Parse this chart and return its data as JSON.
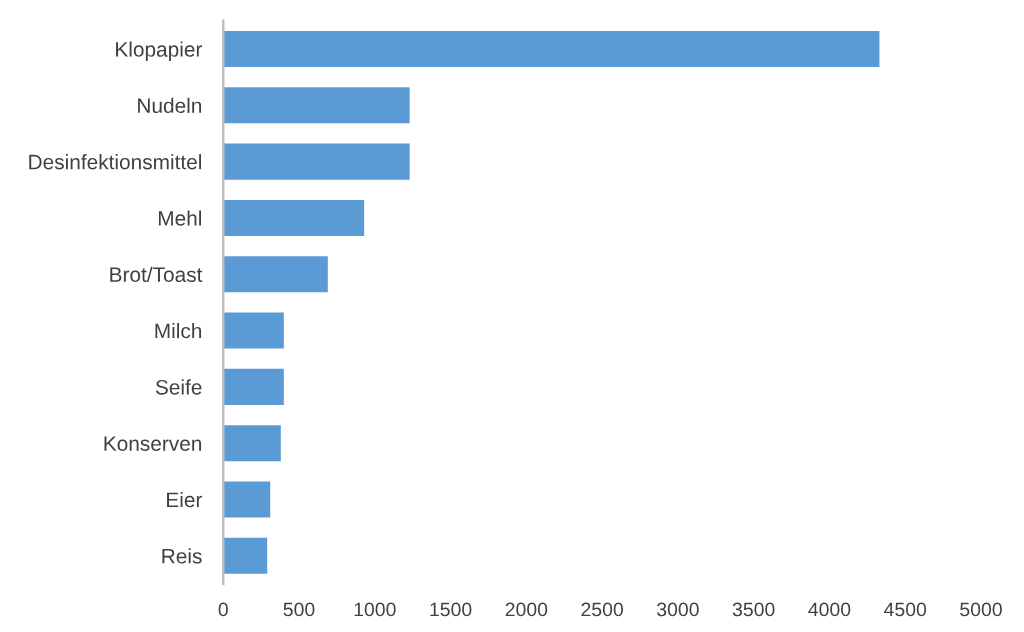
{
  "chart_data": {
    "type": "bar",
    "orientation": "horizontal",
    "categories": [
      "Klopapier",
      "Nudeln",
      "Desinfektionsmittel",
      "Mehl",
      "Brot/Toast",
      "Milch",
      "Seife",
      "Konserven",
      "Eier",
      "Reis"
    ],
    "values": [
      4330,
      1230,
      1230,
      930,
      690,
      400,
      400,
      380,
      310,
      290
    ],
    "color": "#5b9bd5",
    "xlim": [
      0,
      5000
    ],
    "xticks": [
      0,
      500,
      1000,
      1500,
      2000,
      2500,
      3000,
      3500,
      4000,
      4500,
      5000
    ]
  }
}
